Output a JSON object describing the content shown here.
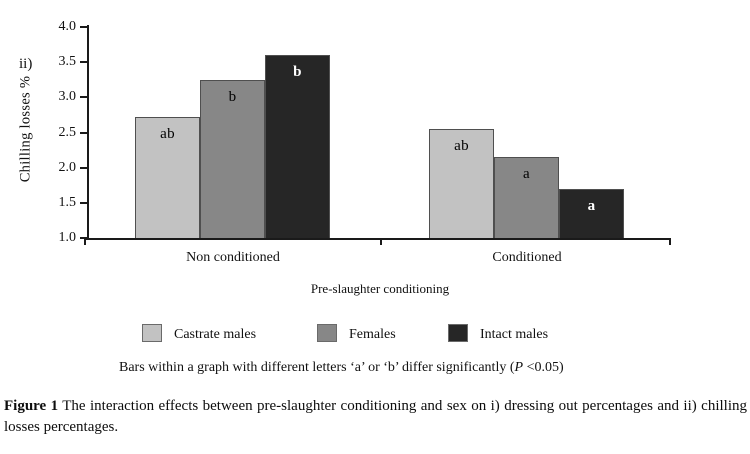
{
  "chart_data": {
    "type": "bar",
    "panel_label": "ii)",
    "title": "",
    "ylabel": "Chilling losses %",
    "xlabel": "Pre-slaughter conditioning",
    "ylim": [
      1.0,
      4.0
    ],
    "ytick_labels": [
      "4.0",
      "3.5",
      "3.0",
      "2.5",
      "2.0",
      "1.5",
      "1.0"
    ],
    "grid": false,
    "legend_position": "bottom",
    "categories": [
      "Non conditioned",
      "Conditioned"
    ],
    "series": [
      {
        "name": "Castrate males",
        "color": "#c2c2c2",
        "values": [
          2.72,
          2.55
        ],
        "sig_labels": [
          "ab",
          "ab"
        ],
        "label_color": "#000000"
      },
      {
        "name": "Females",
        "color": "#878787",
        "values": [
          3.25,
          2.15
        ],
        "sig_labels": [
          "b",
          "a"
        ],
        "label_color": "#000000"
      },
      {
        "name": "Intact males",
        "color": "#262626",
        "values": [
          3.6,
          1.7
        ],
        "sig_labels": [
          "b",
          "a"
        ],
        "label_color": "#ffffff"
      }
    ]
  },
  "note": {
    "prefix": "Bars within a graph with different letters ‘a’ or ‘b’ differ significantly (",
    "italic": "P",
    "suffix": " <0.05)"
  },
  "caption": {
    "label": "Figure 1",
    "text": " The interaction effects between pre-slaughter conditioning and sex on i) dressing out percentages and ii) chilling losses percentages."
  }
}
